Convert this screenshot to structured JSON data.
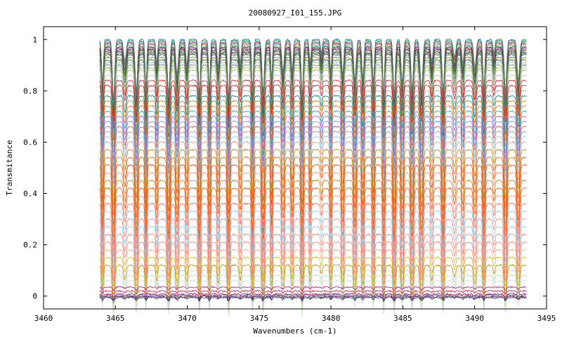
{
  "chart_data": {
    "type": "line",
    "title": "20080927_I01_155.JPG",
    "xlabel": "Wavenumbers (cm-1)",
    "ylabel": "Transmitance",
    "xlim": [
      3460,
      3495
    ],
    "ylim": [
      -0.05,
      1.05
    ],
    "x_ticks": [
      "3460",
      "3465",
      "3470",
      "3475",
      "3480",
      "3485",
      "3490",
      "3495"
    ],
    "x_tick_values": [
      3460,
      3465,
      3470,
      3475,
      3480,
      3485,
      3490,
      3495
    ],
    "y_ticks": [
      "0",
      "0.2",
      "0.4",
      "0.6",
      "0.8",
      "1"
    ],
    "y_tick_values": [
      0,
      0.2,
      0.4,
      0.6,
      0.8,
      1
    ],
    "grid": false,
    "legend": "none",
    "x_range": [
      3463.9,
      3493.6
    ],
    "series": [
      {
        "baseline": 1.0,
        "color": "#1f77b4"
      },
      {
        "baseline": 0.995,
        "color": "#2ca02c"
      },
      {
        "baseline": 0.99,
        "color": "#9467bd"
      },
      {
        "baseline": 0.985,
        "color": "#d62728"
      },
      {
        "baseline": 0.98,
        "color": "#17becf"
      },
      {
        "baseline": 0.975,
        "color": "#bcbd22"
      },
      {
        "baseline": 0.97,
        "color": "#1a2a4a"
      },
      {
        "baseline": 0.965,
        "color": "#c71585"
      },
      {
        "baseline": 0.96,
        "color": "#2e3b5c"
      },
      {
        "baseline": 0.955,
        "color": "#6b8e23"
      },
      {
        "baseline": 0.95,
        "color": "#3b4a6b"
      },
      {
        "baseline": 0.945,
        "color": "#556b2f"
      },
      {
        "baseline": 0.94,
        "color": "#4a5a7a"
      },
      {
        "baseline": 0.93,
        "color": "#6b8e23"
      },
      {
        "baseline": 0.92,
        "color": "#2f4f4f"
      },
      {
        "baseline": 0.91,
        "color": "#8fbc8f"
      },
      {
        "baseline": 0.9,
        "color": "#708090"
      },
      {
        "baseline": 0.89,
        "color": "#9acd32"
      },
      {
        "baseline": 0.88,
        "color": "#b0b0b0"
      },
      {
        "baseline": 0.86,
        "color": "#c0c0c0"
      },
      {
        "baseline": 0.84,
        "color": "#d62728"
      },
      {
        "baseline": 0.82,
        "color": "#b22222"
      },
      {
        "baseline": 0.8,
        "color": "#a9a9a9"
      },
      {
        "baseline": 0.78,
        "color": "#008080"
      },
      {
        "baseline": 0.76,
        "color": "#b8860b"
      },
      {
        "baseline": 0.74,
        "color": "#ff6347"
      },
      {
        "baseline": 0.72,
        "color": "#20b2aa"
      },
      {
        "baseline": 0.7,
        "color": "#ba55d3"
      },
      {
        "baseline": 0.68,
        "color": "#6495ed"
      },
      {
        "baseline": 0.66,
        "color": "#cd5c5c"
      },
      {
        "baseline": 0.64,
        "color": "#a0a0a0"
      },
      {
        "baseline": 0.62,
        "color": "#87ceeb"
      },
      {
        "baseline": 0.6,
        "color": "#e9967a"
      },
      {
        "baseline": 0.57,
        "color": "#b8860b"
      },
      {
        "baseline": 0.54,
        "color": "#d2691e"
      },
      {
        "baseline": 0.51,
        "color": "#ff4500"
      },
      {
        "baseline": 0.48,
        "color": "#e9967a"
      },
      {
        "baseline": 0.45,
        "color": "#b8860b"
      },
      {
        "baseline": 0.42,
        "color": "#ff4500"
      },
      {
        "baseline": 0.39,
        "color": "#e9967a"
      },
      {
        "baseline": 0.36,
        "color": "#ff6347"
      },
      {
        "baseline": 0.33,
        "color": "#87ceeb"
      },
      {
        "baseline": 0.3,
        "color": "#fa8072"
      },
      {
        "baseline": 0.27,
        "color": "#87ceeb"
      },
      {
        "baseline": 0.24,
        "color": "#fa8072"
      },
      {
        "baseline": 0.21,
        "color": "#fa8072"
      },
      {
        "baseline": 0.18,
        "color": "#ffa07a"
      },
      {
        "baseline": 0.15,
        "color": "#bcbd22"
      },
      {
        "baseline": 0.12,
        "color": "#b8860b"
      },
      {
        "baseline": 0.1,
        "color": "#d3d3d3"
      },
      {
        "baseline": 0.08,
        "color": "#b0e0a0"
      },
      {
        "baseline": 0.06,
        "color": "#dcdcdc"
      },
      {
        "baseline": 0.035,
        "color": "#c71585"
      },
      {
        "baseline": 0.02,
        "color": "#dc143c"
      },
      {
        "baseline": 0.008,
        "color": "#8b008b"
      },
      {
        "baseline": 0.003,
        "color": "#556b2f"
      },
      {
        "baseline": -0.002,
        "color": "#4b0082"
      },
      {
        "baseline": -0.006,
        "color": "#2f4f4f"
      }
    ]
  }
}
